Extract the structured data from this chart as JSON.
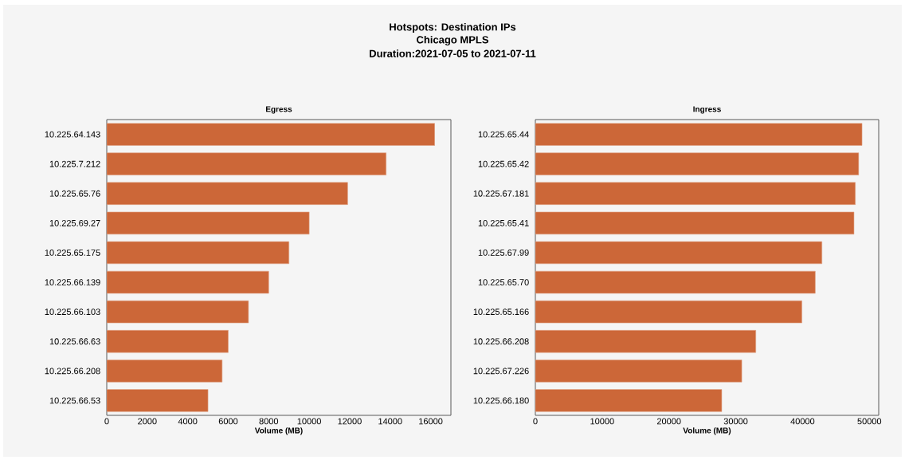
{
  "chart_data": [
    {
      "type": "bar",
      "orientation": "horizontal",
      "title": "Egress",
      "xlabel": "Volume (MB)",
      "annotations": [
        "Hotspots: Destination IPs",
        "Chicago MPLS",
        "Duration:2021-07-05 to 2021-07-11"
      ],
      "categories": [
        "10.225.64.143",
        "10.225.7.212",
        "10.225.65.76",
        "10.225.69.27",
        "10.225.65.175",
        "10.225.66.139",
        "10.225.66.103",
        "10.225.66.63",
        "10.225.66.208",
        "10.225.66.53"
      ],
      "values": [
        16200,
        13800,
        11900,
        10000,
        9000,
        8000,
        7000,
        6000,
        5700,
        5000
      ],
      "color": "#cc6738",
      "xlim": [
        0,
        17000
      ],
      "xticks": [
        0,
        2000,
        4000,
        6000,
        8000,
        10000,
        12000,
        14000,
        16000
      ]
    },
    {
      "type": "bar",
      "orientation": "horizontal",
      "title": "Ingress",
      "xlabel": "Volume (MB)",
      "categories": [
        "10.225.65.44",
        "10.225.65.42",
        "10.225.67.181",
        "10.225.65.41",
        "10.225.67.99",
        "10.225.65.70",
        "10.225.65.166",
        "10.225.66.208",
        "10.225.67.226",
        "10.225.66.180"
      ],
      "values": [
        48900,
        48400,
        47900,
        47700,
        42900,
        41900,
        39900,
        33000,
        30900,
        27900
      ],
      "color": "#cc6738",
      "xlim": [
        0,
        51400
      ],
      "xticks": [
        0,
        10000,
        20000,
        30000,
        40000,
        50000
      ]
    }
  ]
}
